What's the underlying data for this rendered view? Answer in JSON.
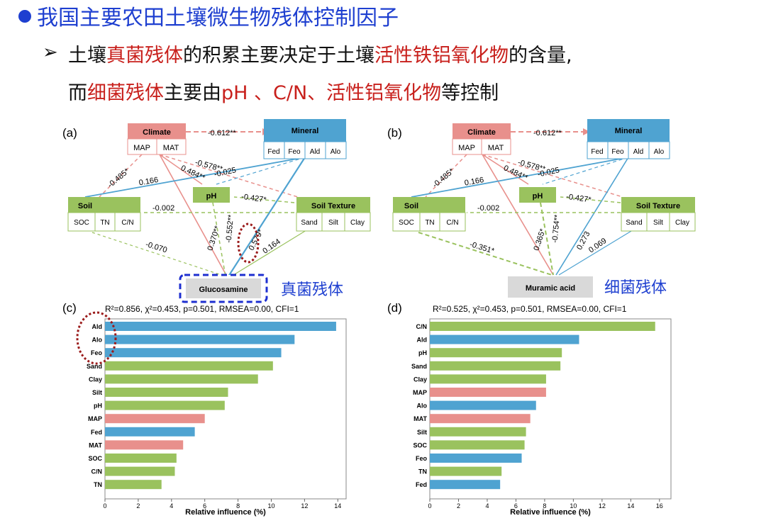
{
  "heading": {
    "title": "我国主要农田土壤微生物残体控制因子",
    "line1_parts": [
      "土壤",
      "真菌残体",
      "的积累主要决定于土壤",
      "活性铁铝氧化物",
      "的含量,"
    ],
    "line2_parts": [
      "而",
      "细菌残体",
      "主要由",
      "pH 、C/N、活性铝氧化物",
      "等控制"
    ]
  },
  "colors": {
    "blue_title": "#1e3fd0",
    "red_text": "#c8201c",
    "climate": "#e8908c",
    "mineral": "#4fa3d1",
    "soil": "#9ac25e",
    "target": "#d9d9d9"
  },
  "panel_a": {
    "label": "(a)",
    "nodes": {
      "climate": {
        "name": "Climate",
        "sub": [
          "MAP",
          "MAT"
        ]
      },
      "mineral": {
        "name": "Mineral",
        "sub": [
          "Fed",
          "Feo",
          "Ald",
          "Alo"
        ]
      },
      "soil": {
        "name": "Soil",
        "sub": [
          "SOC",
          "TN",
          "C/N"
        ]
      },
      "ph": {
        "name": "pH"
      },
      "texture": {
        "name": "Soil Texture",
        "sub": [
          "Sand",
          "Silt",
          "Clay"
        ]
      },
      "target": {
        "name": "Glucosamine"
      }
    },
    "paths": [
      "-0.612**",
      "-0.485*",
      "-0.578**",
      "0.484**",
      "-0.025",
      "0.166",
      "-0.427*",
      "-0.002",
      "-0.070",
      "0.370**",
      "-0.552**",
      "0.579*",
      "0.164"
    ],
    "annotation": "真菌残体"
  },
  "panel_b": {
    "label": "(b)",
    "nodes": {
      "climate": {
        "name": "Climate",
        "sub": [
          "MAP",
          "MAT"
        ]
      },
      "mineral": {
        "name": "Mineral",
        "sub": [
          "Fed",
          "Feo",
          "Ald",
          "Alo"
        ]
      },
      "soil": {
        "name": "Soil",
        "sub": [
          "SOC",
          "TN",
          "C/N"
        ]
      },
      "ph": {
        "name": "pH"
      },
      "texture": {
        "name": "Soil Texture",
        "sub": [
          "Sand",
          "Silt",
          "Clay"
        ]
      },
      "target": {
        "name": "Muramic acid"
      }
    },
    "paths": [
      "-0.612**",
      "-0.485*",
      "-0.578**",
      "0.484**",
      "-0.025",
      "0.166",
      "-0.427*",
      "-0.002",
      "-0.351*",
      "0.365*",
      "-0.754**",
      "0.273",
      "0.069"
    ],
    "annotation": "细菌残体"
  },
  "chart_data": [
    {
      "type": "bar",
      "label": "(c)",
      "stats": "R²=0.856, χ²=0.453, p=0.501, RMSEA=0.00, CFI=1",
      "xlabel": "Relative influence (%)",
      "xlim": [
        0,
        14.5
      ],
      "xticks": [
        0,
        2,
        4,
        6,
        8,
        10,
        12,
        14
      ],
      "categories": [
        "Ald",
        "Alo",
        "Feo",
        "Sand",
        "Clay",
        "Silt",
        "pH",
        "MAP",
        "Fed",
        "MAT",
        "SOC",
        "C/N",
        "TN"
      ],
      "values": [
        13.9,
        11.4,
        10.6,
        10.1,
        9.2,
        7.4,
        7.2,
        6.0,
        5.4,
        4.7,
        4.3,
        4.2,
        3.4
      ],
      "groups": [
        "mineral",
        "mineral",
        "mineral",
        "soil",
        "soil",
        "soil",
        "soil",
        "climate",
        "mineral",
        "climate",
        "soil",
        "soil",
        "soil"
      ]
    },
    {
      "type": "bar",
      "label": "(d)",
      "stats": "R²=0.525, χ²=0.453, p=0.501, RMSEA=0.00, CFI=1",
      "xlabel": "Relative influence (%)",
      "xlim": [
        0,
        16.8
      ],
      "xticks": [
        0,
        2,
        4,
        6,
        8,
        10,
        12,
        14,
        16
      ],
      "categories": [
        "C/N",
        "Ald",
        "pH",
        "Sand",
        "Clay",
        "MAP",
        "Alo",
        "MAT",
        "Silt",
        "SOC",
        "Feo",
        "TN",
        "Fed"
      ],
      "values": [
        15.7,
        10.4,
        9.2,
        9.1,
        8.1,
        8.1,
        7.4,
        7.0,
        6.7,
        6.6,
        6.4,
        5.0,
        4.9
      ],
      "groups": [
        "soil",
        "mineral",
        "soil",
        "soil",
        "soil",
        "climate",
        "mineral",
        "climate",
        "soil",
        "soil",
        "mineral",
        "soil",
        "mineral"
      ]
    }
  ]
}
